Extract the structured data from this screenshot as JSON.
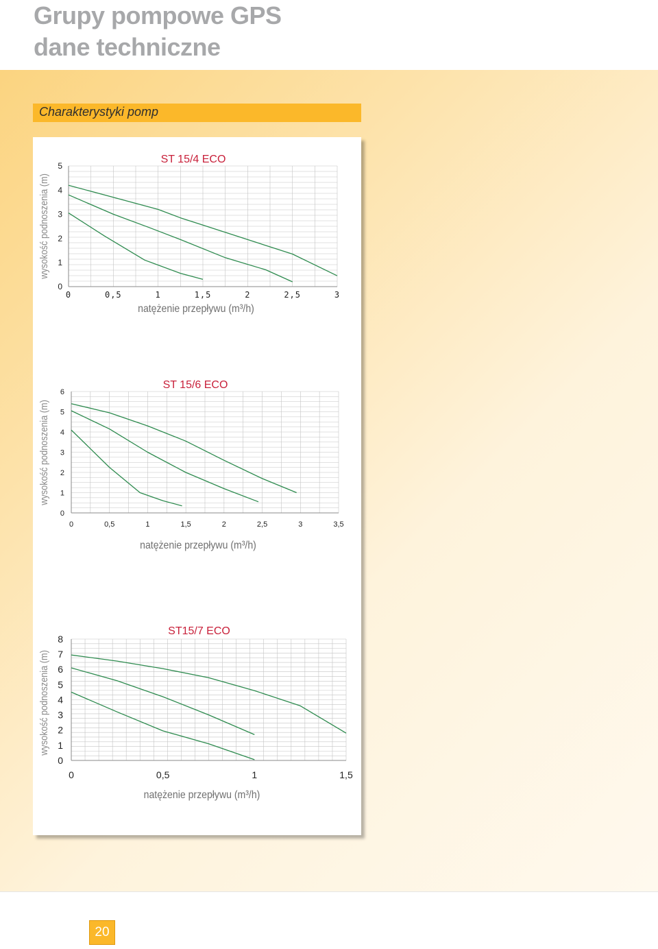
{
  "header": {
    "title_line1": "Grupy pompowe GPS",
    "title_line2": "dane techniczne"
  },
  "section": {
    "title": "Charakterystyki pomp"
  },
  "footer": {
    "page_number": "20"
  },
  "colors": {
    "accent": "#fbb82a",
    "title_gray": "#a7a8aa",
    "curve_green": "#2e8b4f",
    "chart_title_red": "#c8203a",
    "grid": "#c4c4c4"
  },
  "chart_data": [
    {
      "type": "line",
      "title": "ST 15/4 ECO",
      "xlabel": "natężenie przepływu (m³/h)",
      "ylabel": "wysokość podnoszenia (m)",
      "xlim": [
        0,
        3
      ],
      "ylim": [
        0,
        5
      ],
      "xticks": [
        0,
        0.5,
        1,
        1.5,
        2,
        2.5,
        3
      ],
      "xtick_labels": [
        "0",
        "0,5",
        "1",
        "1,5",
        "2",
        "2,5",
        "3"
      ],
      "yticks": [
        0,
        1,
        2,
        3,
        4,
        5
      ],
      "ytick_labels": [
        "0",
        "1",
        "2",
        "3",
        "4",
        "5"
      ],
      "grid": true,
      "series": [
        {
          "x": [
            0,
            0.5,
            1,
            1.25,
            1.5,
            2,
            2.5,
            3
          ],
          "y": [
            4.2,
            3.7,
            3.2,
            2.85,
            2.55,
            1.95,
            1.35,
            0.45
          ]
        },
        {
          "x": [
            0,
            0.5,
            0.9,
            1.25,
            1.75,
            2.2,
            2.5
          ],
          "y": [
            3.8,
            3.0,
            2.45,
            1.95,
            1.2,
            0.7,
            0.2
          ]
        },
        {
          "x": [
            0,
            0.4,
            0.85,
            1.25,
            1.5
          ],
          "y": [
            3.05,
            2.1,
            1.1,
            0.55,
            0.3
          ]
        }
      ]
    },
    {
      "type": "line",
      "title": "ST 15/6 ECO",
      "xlabel": "natężenie przepływu (m³/h)",
      "ylabel": "wysokość podnoszenia (m)",
      "xlim": [
        0,
        3.5
      ],
      "ylim": [
        0,
        6
      ],
      "xticks": [
        0,
        0.5,
        1,
        1.5,
        2,
        2.5,
        3,
        3.5
      ],
      "xtick_labels": [
        "0",
        "0,5",
        "1",
        "1,5",
        "2",
        "2,5",
        "3",
        "3,5"
      ],
      "yticks": [
        0,
        1,
        2,
        3,
        4,
        5,
        6
      ],
      "ytick_labels": [
        "0",
        "1",
        "2",
        "3",
        "4",
        "5",
        "6"
      ],
      "grid": true,
      "series": [
        {
          "x": [
            0,
            0.5,
            1,
            1.5,
            2,
            2.5,
            2.95
          ],
          "y": [
            5.4,
            4.95,
            4.3,
            3.55,
            2.6,
            1.7,
            1.0
          ]
        },
        {
          "x": [
            0,
            0.5,
            1,
            1.5,
            2,
            2.45
          ],
          "y": [
            5.05,
            4.15,
            3.0,
            2.0,
            1.2,
            0.55
          ]
        },
        {
          "x": [
            0,
            0.5,
            0.9,
            1.2,
            1.45
          ],
          "y": [
            4.1,
            2.25,
            1.0,
            0.6,
            0.35
          ]
        }
      ]
    },
    {
      "type": "line",
      "title": "ST15/7 ECO",
      "xlabel": "natężenie przepływu (m³/h)",
      "ylabel": "wysokość podnoszenia (m)",
      "xlim": [
        0,
        1.5
      ],
      "ylim": [
        0,
        8
      ],
      "xticks": [
        0,
        0.5,
        1,
        1.5
      ],
      "xtick_labels": [
        "0",
        "0,5",
        "1",
        "1,5"
      ],
      "yticks": [
        0,
        1,
        2,
        3,
        4,
        5,
        6,
        7,
        8
      ],
      "ytick_labels": [
        "0",
        "1",
        "2",
        "3",
        "4",
        "5",
        "6",
        "7",
        "8"
      ],
      "grid": true,
      "series": [
        {
          "x": [
            0,
            0.25,
            0.5,
            0.75,
            1.0,
            1.25,
            1.5
          ],
          "y": [
            6.95,
            6.55,
            6.05,
            5.45,
            4.6,
            3.6,
            1.8
          ]
        },
        {
          "x": [
            0,
            0.25,
            0.5,
            0.75,
            1.0
          ],
          "y": [
            6.1,
            5.25,
            4.2,
            3.0,
            1.7
          ]
        },
        {
          "x": [
            0,
            0.25,
            0.5,
            0.75,
            1.0
          ],
          "y": [
            4.5,
            3.2,
            1.95,
            1.1,
            0.05
          ]
        }
      ]
    }
  ]
}
